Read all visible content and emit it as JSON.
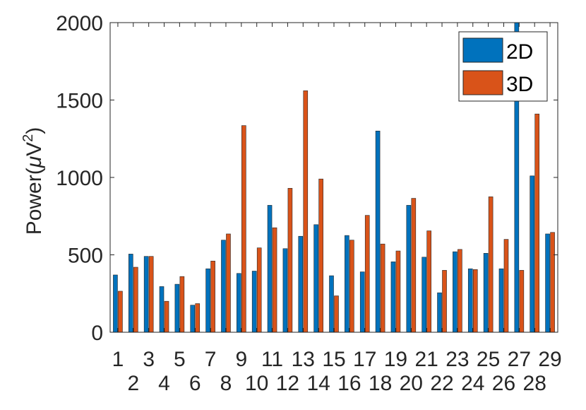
{
  "chart_data": {
    "type": "bar",
    "categories": [
      "1",
      "2",
      "3",
      "4",
      "5",
      "6",
      "7",
      "8",
      "9",
      "10",
      "11",
      "12",
      "13",
      "14",
      "15",
      "16",
      "17",
      "18",
      "19",
      "20",
      "21",
      "22",
      "23",
      "24",
      "25",
      "26",
      "27",
      "28",
      "29"
    ],
    "series": [
      {
        "name": "2D",
        "color": "#0072BD",
        "values": [
          370,
          505,
          490,
          295,
          310,
          175,
          410,
          595,
          380,
          395,
          820,
          540,
          620,
          695,
          365,
          625,
          390,
          1300,
          455,
          820,
          485,
          255,
          520,
          410,
          510,
          410,
          2000,
          1010,
          635
        ]
      },
      {
        "name": "3D",
        "color": "#D95319",
        "values": [
          265,
          420,
          490,
          200,
          360,
          185,
          460,
          635,
          1335,
          545,
          675,
          930,
          1560,
          990,
          235,
          595,
          755,
          570,
          525,
          865,
          655,
          400,
          535,
          405,
          875,
          600,
          400,
          1410,
          645
        ]
      }
    ],
    "ylabel_prefix": "Power(",
    "ylabel_mu": "μ",
    "ylabel_unit": "V",
    "ylabel_exp": "2",
    "ylabel_suffix": ")",
    "ylim": [
      0,
      2000
    ],
    "yticks": [
      "0",
      "500",
      "1000",
      "1500",
      "2000"
    ],
    "ytick_values": [
      0,
      500,
      1000,
      1500,
      2000
    ],
    "legend_position": "top-right",
    "grid": false
  }
}
